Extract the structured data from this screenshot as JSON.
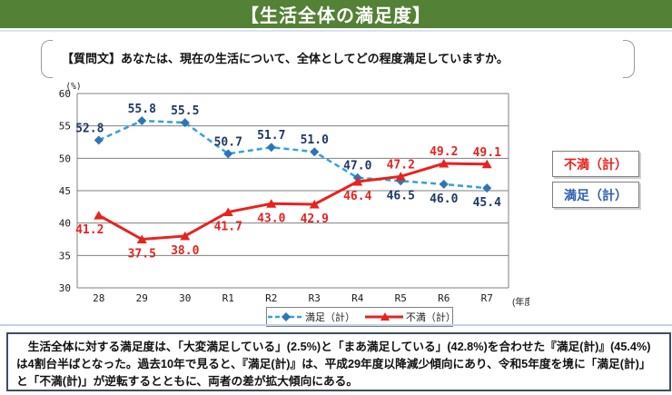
{
  "banner": {
    "title": "【生活全体の満足度】",
    "bg_color": "#538135"
  },
  "question": {
    "text": "【質問文】あなたは、現在の生活について、全体としてどの程度満足していますか。"
  },
  "chart_data": {
    "type": "line",
    "title": "",
    "unit_label": "(%)",
    "x_axis_suffix": "(年度)",
    "categories": [
      "28",
      "29",
      "30",
      "R1",
      "R2",
      "R3",
      "R4",
      "R5",
      "R6",
      "R7"
    ],
    "ylim": [
      30,
      60
    ],
    "ytick_step": 5,
    "grid": true,
    "legend_position": "bottom",
    "series": [
      {
        "name": "満足（計）",
        "values": [
          52.8,
          55.8,
          55.5,
          50.7,
          51.7,
          51.0,
          47.0,
          46.5,
          46.0,
          45.4
        ],
        "color": "#31a2dc",
        "marker_color": "#2e75b6",
        "label_color": "#1f3864",
        "style": "dashed",
        "marker": "diamond",
        "label_positions": [
          "above",
          "above",
          "above",
          "above",
          "above",
          "above",
          "above",
          "below",
          "below",
          "below"
        ]
      },
      {
        "name": "不満（計）",
        "values": [
          41.2,
          37.5,
          38.0,
          41.7,
          43.0,
          42.9,
          46.4,
          47.2,
          49.2,
          49.1
        ],
        "color": "#e8221f",
        "marker_color": "#e8221f",
        "label_color": "#e8221f",
        "style": "solid",
        "marker": "triangle",
        "label_positions": [
          "below",
          "below",
          "below",
          "below",
          "below",
          "below",
          "below",
          "above",
          "above",
          "above"
        ]
      }
    ]
  },
  "side_labels": {
    "dissatisfied": "不満（計）",
    "satisfied": "満足（計）",
    "dissatisfied_color": "#e8221f",
    "satisfied_color": "#2f5fae"
  },
  "summary": {
    "text": "　生活全体に対する満足度は、「大変満足している」(2.5%)と「まあ満足している」(42.8%)を合わせた『満足(計)』(45.4%)は4割台半ばとなった。過去10年で見ると、『満足(計)』は、平成29年度以降減少傾向にあり、令和5年度を境に「満足(計)」と「不満(計)」が逆転するとともに、両者の差が拡大傾向にある。"
  }
}
